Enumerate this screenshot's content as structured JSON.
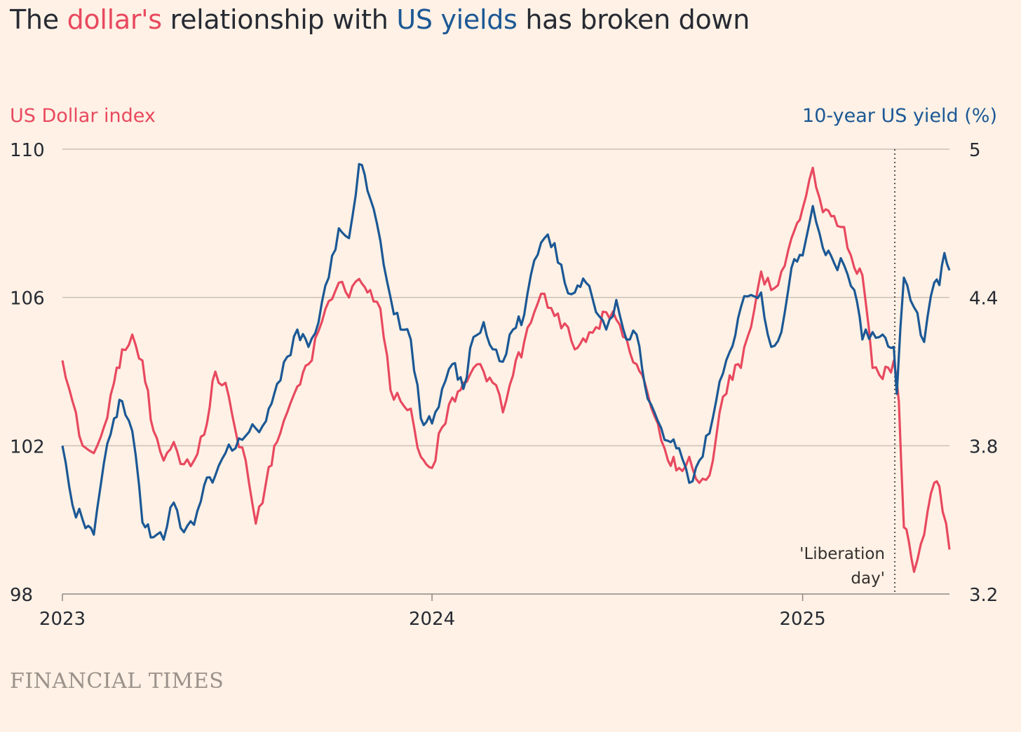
{
  "title": {
    "part1": "The ",
    "part2": "dollar's",
    "part3": " relationship with ",
    "part4": "US yields",
    "part5": " has broken down"
  },
  "source": "FINANCIAL TIMES",
  "colors": {
    "dollar": "#e8495f",
    "yield": "#1b5895",
    "background": "#fff1e5",
    "grid": "#ccc1b7",
    "text": "#262a33",
    "source": "#9a918a"
  },
  "chart_data": {
    "type": "line",
    "left_axis": {
      "label": "US Dollar index",
      "range": [
        98,
        110
      ],
      "ticks": [
        "110",
        "106",
        "102",
        "98"
      ],
      "tick_values": [
        110,
        106,
        102,
        98
      ]
    },
    "right_axis": {
      "label": "10-year US yield (%)",
      "range": [
        3.2,
        5.0
      ],
      "ticks": [
        "5",
        "4.4",
        "3.8",
        "3.2"
      ],
      "tick_values": [
        5.0,
        4.4,
        3.8,
        3.2
      ]
    },
    "x_axis": {
      "range": [
        "2023-01-01",
        "2025-05-26"
      ],
      "ticks": [
        {
          "label": "2023",
          "date": "2023-01-01"
        },
        {
          "label": "2024",
          "date": "2024-01-01"
        },
        {
          "label": "2025",
          "date": "2025-01-01"
        }
      ]
    },
    "grid": true,
    "annotation": {
      "line1": "'Liberation",
      "line2": "day'",
      "date": "2025-04-02"
    },
    "series": [
      {
        "axis": "left",
        "color": "#e8495f",
        "points": [
          [
            "2023-01-01",
            104.3
          ],
          [
            "2023-01-11",
            103.2
          ],
          [
            "2023-01-21",
            102.0
          ],
          [
            "2023-02-01",
            101.8
          ],
          [
            "2023-02-11",
            102.5
          ],
          [
            "2023-02-21",
            103.7
          ],
          [
            "2023-03-01",
            104.6
          ],
          [
            "2023-03-11",
            105.0
          ],
          [
            "2023-03-21",
            104.3
          ],
          [
            "2023-04-01",
            102.4
          ],
          [
            "2023-04-11",
            101.6
          ],
          [
            "2023-04-21",
            102.1
          ],
          [
            "2023-05-01",
            101.5
          ],
          [
            "2023-05-11",
            101.6
          ],
          [
            "2023-05-21",
            102.3
          ],
          [
            "2023-06-01",
            104.0
          ],
          [
            "2023-06-11",
            103.7
          ],
          [
            "2023-06-21",
            102.4
          ],
          [
            "2023-07-01",
            101.6
          ],
          [
            "2023-07-11",
            99.9
          ],
          [
            "2023-07-21",
            101.0
          ],
          [
            "2023-08-01",
            102.1
          ],
          [
            "2023-08-11",
            102.9
          ],
          [
            "2023-08-21",
            103.6
          ],
          [
            "2023-09-01",
            104.2
          ],
          [
            "2023-09-11",
            105.1
          ],
          [
            "2023-09-21",
            105.9
          ],
          [
            "2023-10-01",
            106.4
          ],
          [
            "2023-10-11",
            106.0
          ],
          [
            "2023-10-21",
            106.5
          ],
          [
            "2023-11-01",
            106.2
          ],
          [
            "2023-11-11",
            105.7
          ],
          [
            "2023-11-21",
            103.5
          ],
          [
            "2023-12-01",
            103.2
          ],
          [
            "2023-12-11",
            103.0
          ],
          [
            "2023-12-21",
            101.7
          ],
          [
            "2024-01-01",
            101.4
          ],
          [
            "2024-01-11",
            102.5
          ],
          [
            "2024-01-21",
            103.3
          ],
          [
            "2024-02-01",
            103.7
          ],
          [
            "2024-02-11",
            104.1
          ],
          [
            "2024-02-21",
            104.0
          ],
          [
            "2024-03-01",
            103.7
          ],
          [
            "2024-03-11",
            102.9
          ],
          [
            "2024-03-21",
            103.9
          ],
          [
            "2024-04-01",
            104.8
          ],
          [
            "2024-04-11",
            105.6
          ],
          [
            "2024-04-21",
            106.1
          ],
          [
            "2024-05-01",
            105.5
          ],
          [
            "2024-05-11",
            105.3
          ],
          [
            "2024-05-21",
            104.6
          ],
          [
            "2024-06-01",
            104.8
          ],
          [
            "2024-06-11",
            105.2
          ],
          [
            "2024-06-21",
            105.6
          ],
          [
            "2024-07-01",
            105.4
          ],
          [
            "2024-07-11",
            104.9
          ],
          [
            "2024-07-21",
            104.2
          ],
          [
            "2024-08-01",
            103.4
          ],
          [
            "2024-08-11",
            102.6
          ],
          [
            "2024-08-21",
            101.6
          ],
          [
            "2024-09-01",
            101.4
          ],
          [
            "2024-09-11",
            101.7
          ],
          [
            "2024-09-21",
            101.0
          ],
          [
            "2024-10-01",
            101.2
          ],
          [
            "2024-10-11",
            102.9
          ],
          [
            "2024-10-21",
            103.9
          ],
          [
            "2024-11-01",
            104.1
          ],
          [
            "2024-11-11",
            105.2
          ],
          [
            "2024-11-21",
            106.7
          ],
          [
            "2024-12-01",
            106.2
          ],
          [
            "2024-12-11",
            106.7
          ],
          [
            "2024-12-21",
            107.6
          ],
          [
            "2025-01-01",
            108.4
          ],
          [
            "2025-01-11",
            109.5
          ],
          [
            "2025-01-21",
            108.3
          ],
          [
            "2025-02-01",
            108.2
          ],
          [
            "2025-02-11",
            107.9
          ],
          [
            "2025-02-21",
            106.8
          ],
          [
            "2025-03-01",
            106.6
          ],
          [
            "2025-03-11",
            104.1
          ],
          [
            "2025-03-21",
            103.8
          ],
          [
            "2025-04-01",
            104.3
          ],
          [
            "2025-04-06",
            103.2
          ],
          [
            "2025-04-11",
            99.8
          ],
          [
            "2025-04-16",
            99.4
          ],
          [
            "2025-04-21",
            98.6
          ],
          [
            "2025-05-01",
            99.6
          ],
          [
            "2025-05-11",
            101.0
          ],
          [
            "2025-05-16",
            100.9
          ],
          [
            "2025-05-26",
            99.2
          ]
        ]
      },
      {
        "axis": "right",
        "color": "#1b5895",
        "points": [
          [
            "2023-01-01",
            3.8
          ],
          [
            "2023-01-11",
            3.56
          ],
          [
            "2023-01-21",
            3.5
          ],
          [
            "2023-02-01",
            3.44
          ],
          [
            "2023-02-11",
            3.73
          ],
          [
            "2023-02-21",
            3.91
          ],
          [
            "2023-03-01",
            3.98
          ],
          [
            "2023-03-11",
            3.86
          ],
          [
            "2023-03-21",
            3.49
          ],
          [
            "2023-04-01",
            3.43
          ],
          [
            "2023-04-11",
            3.42
          ],
          [
            "2023-04-21",
            3.57
          ],
          [
            "2023-05-01",
            3.45
          ],
          [
            "2023-05-11",
            3.48
          ],
          [
            "2023-05-21",
            3.64
          ],
          [
            "2023-06-01",
            3.68
          ],
          [
            "2023-06-11",
            3.77
          ],
          [
            "2023-06-21",
            3.79
          ],
          [
            "2023-07-01",
            3.84
          ],
          [
            "2023-07-11",
            3.87
          ],
          [
            "2023-07-21",
            3.9
          ],
          [
            "2023-08-01",
            4.05
          ],
          [
            "2023-08-11",
            4.16
          ],
          [
            "2023-08-21",
            4.27
          ],
          [
            "2023-09-01",
            4.2
          ],
          [
            "2023-09-11",
            4.3
          ],
          [
            "2023-09-21",
            4.48
          ],
          [
            "2023-10-01",
            4.68
          ],
          [
            "2023-10-11",
            4.64
          ],
          [
            "2023-10-21",
            4.94
          ],
          [
            "2023-11-01",
            4.8
          ],
          [
            "2023-11-11",
            4.63
          ],
          [
            "2023-11-21",
            4.4
          ],
          [
            "2023-12-01",
            4.27
          ],
          [
            "2023-12-11",
            4.23
          ],
          [
            "2023-12-21",
            3.91
          ],
          [
            "2024-01-01",
            3.89
          ],
          [
            "2024-01-11",
            4.03
          ],
          [
            "2024-01-21",
            4.13
          ],
          [
            "2024-02-01",
            4.03
          ],
          [
            "2024-02-11",
            4.24
          ],
          [
            "2024-02-21",
            4.3
          ],
          [
            "2024-03-01",
            4.19
          ],
          [
            "2024-03-11",
            4.14
          ],
          [
            "2024-03-21",
            4.27
          ],
          [
            "2024-04-01",
            4.33
          ],
          [
            "2024-04-11",
            4.55
          ],
          [
            "2024-04-21",
            4.64
          ],
          [
            "2024-05-01",
            4.62
          ],
          [
            "2024-05-11",
            4.46
          ],
          [
            "2024-05-21",
            4.42
          ],
          [
            "2024-06-01",
            4.46
          ],
          [
            "2024-06-11",
            4.34
          ],
          [
            "2024-06-21",
            4.27
          ],
          [
            "2024-07-01",
            4.39
          ],
          [
            "2024-07-11",
            4.23
          ],
          [
            "2024-07-21",
            4.25
          ],
          [
            "2024-08-01",
            3.99
          ],
          [
            "2024-08-11",
            3.9
          ],
          [
            "2024-08-21",
            3.82
          ],
          [
            "2024-09-01",
            3.79
          ],
          [
            "2024-09-11",
            3.65
          ],
          [
            "2024-09-21",
            3.74
          ],
          [
            "2024-10-01",
            3.85
          ],
          [
            "2024-10-11",
            4.06
          ],
          [
            "2024-10-21",
            4.18
          ],
          [
            "2024-11-01",
            4.36
          ],
          [
            "2024-11-11",
            4.41
          ],
          [
            "2024-11-21",
            4.42
          ],
          [
            "2024-12-01",
            4.2
          ],
          [
            "2024-12-11",
            4.26
          ],
          [
            "2024-12-21",
            4.52
          ],
          [
            "2025-01-01",
            4.57
          ],
          [
            "2025-01-11",
            4.77
          ],
          [
            "2025-01-21",
            4.6
          ],
          [
            "2025-02-01",
            4.54
          ],
          [
            "2025-02-11",
            4.53
          ],
          [
            "2025-02-21",
            4.43
          ],
          [
            "2025-03-01",
            4.23
          ],
          [
            "2025-03-11",
            4.26
          ],
          [
            "2025-03-21",
            4.25
          ],
          [
            "2025-04-01",
            4.2
          ],
          [
            "2025-04-04",
            4.01
          ],
          [
            "2025-04-11",
            4.48
          ],
          [
            "2025-04-21",
            4.36
          ],
          [
            "2025-05-01",
            4.22
          ],
          [
            "2025-05-11",
            4.46
          ],
          [
            "2025-05-16",
            4.45
          ],
          [
            "2025-05-21",
            4.58
          ],
          [
            "2025-05-26",
            4.51
          ]
        ]
      }
    ]
  }
}
